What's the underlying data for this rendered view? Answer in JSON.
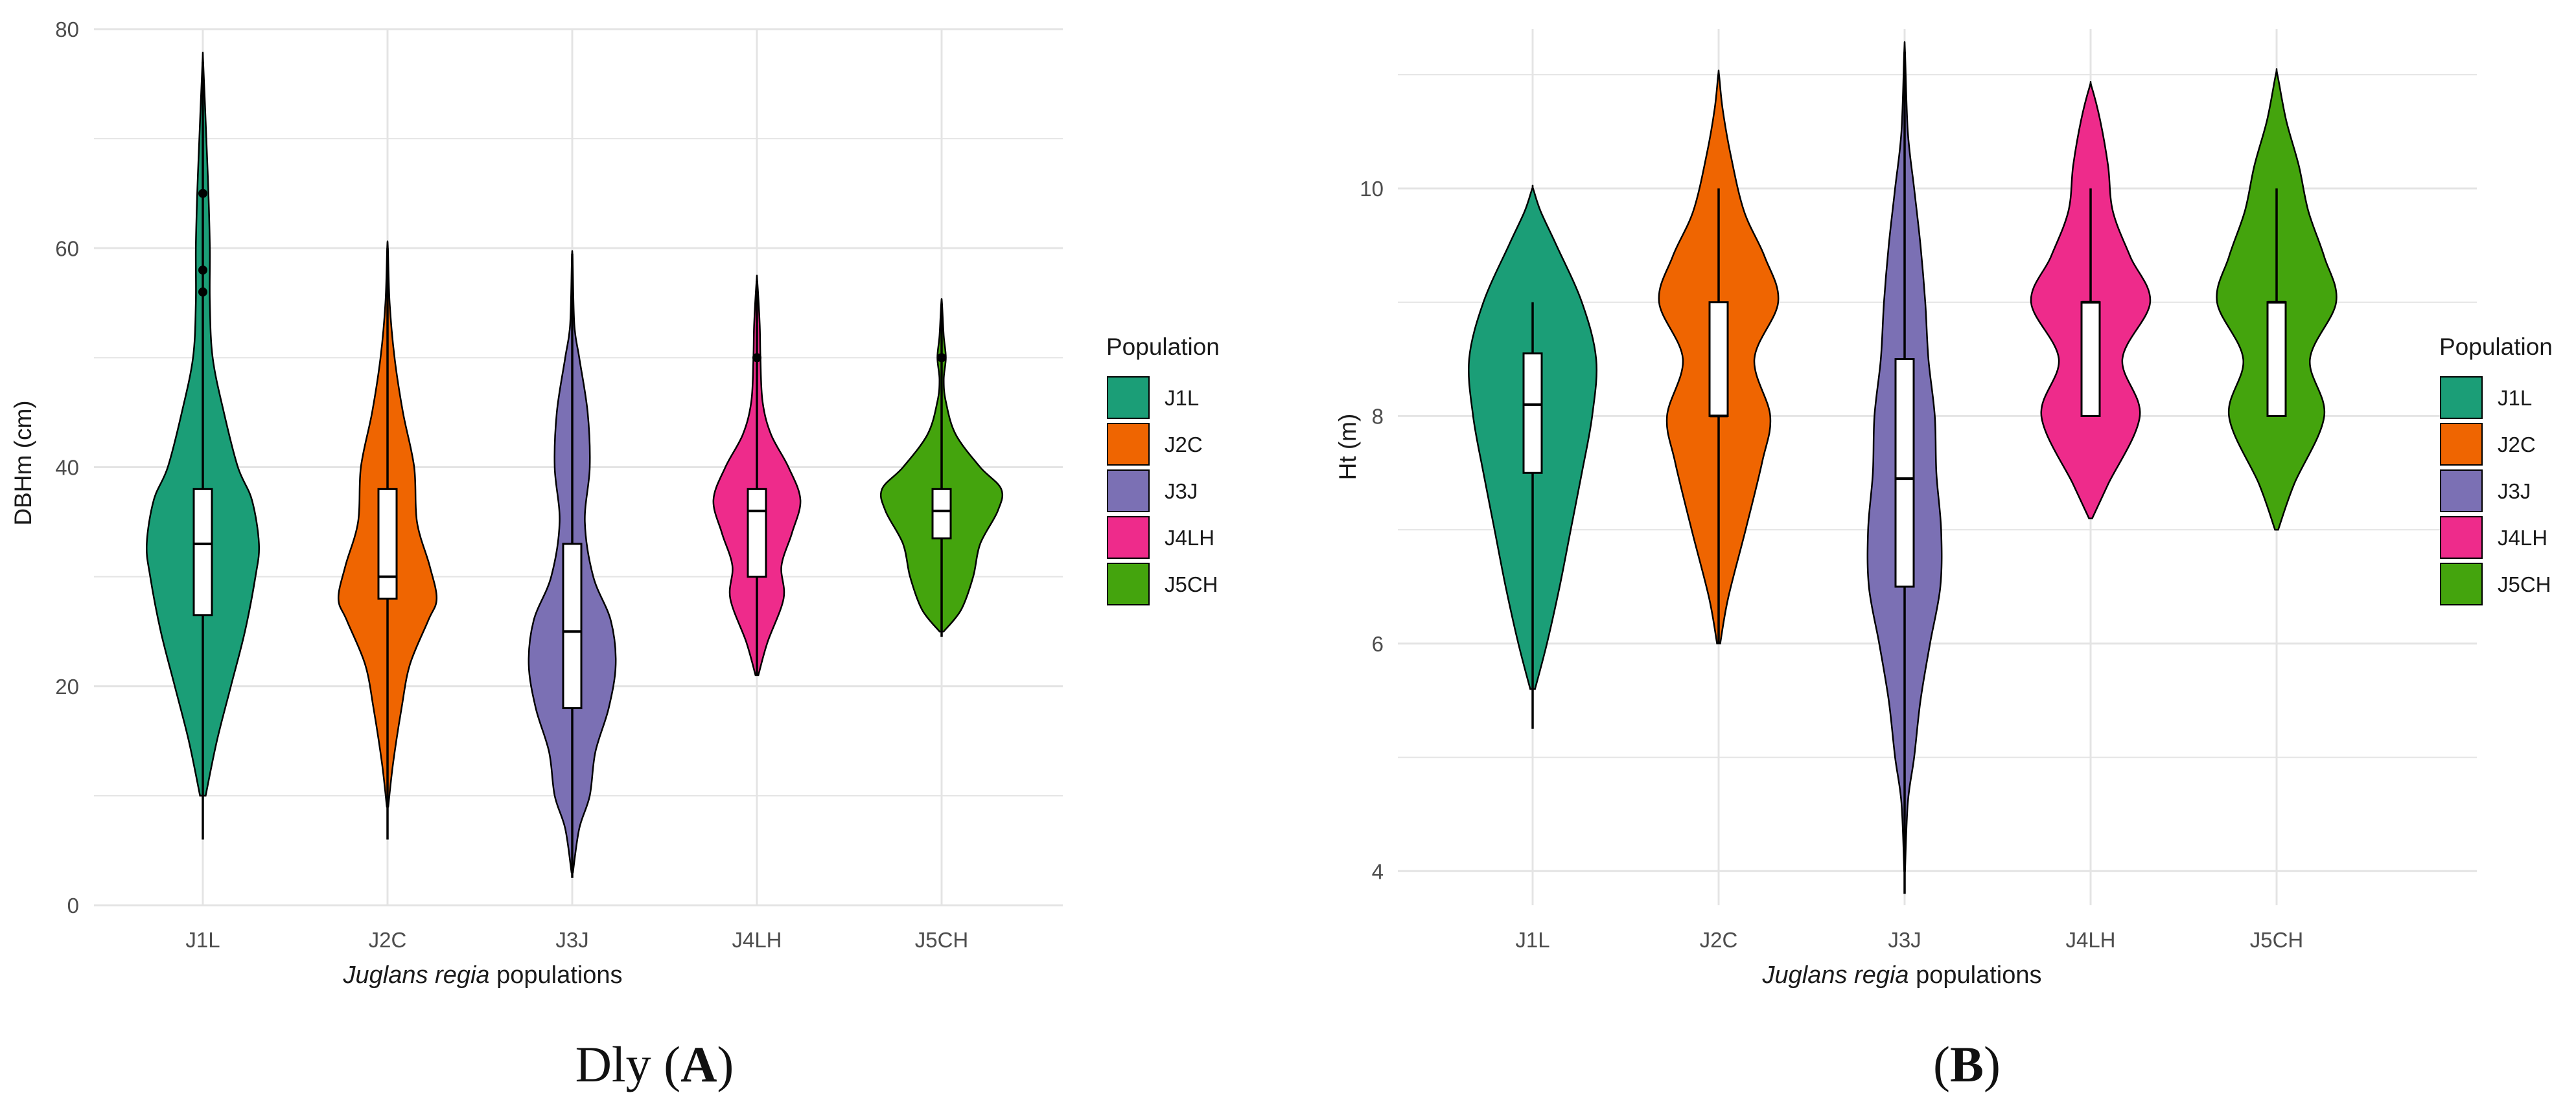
{
  "populations": [
    "J1L",
    "J2C",
    "J3J",
    "J4LH",
    "J5CH"
  ],
  "colors": {
    "J1L": "#1b9e77",
    "J2C": "#ef6501",
    "J3J": "#7b70b4",
    "J4LH": "#ee2b8b",
    "J5CH": "#44a40d",
    "grid": "#e4e4e4",
    "axis_text": "#4d4d4d"
  },
  "legend": {
    "title": "Population",
    "items": [
      "J1L",
      "J2C",
      "J3J",
      "J4LH",
      "J5CH"
    ]
  },
  "xlabel": {
    "italic": "Juglans regia",
    "rest": " populations"
  },
  "panels": [
    {
      "caption_prefix": "Dly (",
      "caption_letter": "A",
      "caption_suffix": ")",
      "ylabel": "DBHm (cm)"
    },
    {
      "caption_prefix": "(",
      "caption_letter": "B",
      "caption_suffix": ")",
      "ylabel": "Ht (m)"
    }
  ],
  "chart_data": [
    {
      "type": "violin",
      "ylabel": "DBHm (cm)",
      "ylim": [
        0,
        80
      ],
      "yticks": [
        0,
        20,
        40,
        60,
        80
      ],
      "grid": true,
      "legend_position": "right",
      "categories": [
        "J1L",
        "J2C",
        "J3J",
        "J4LH",
        "J5CH"
      ],
      "series": [
        {
          "name": "J1L",
          "min": 6,
          "q1": 26.5,
          "median": 33,
          "q3": 38,
          "max": 77,
          "outliers": [
            56,
            58,
            65
          ],
          "density": [
            [
              10,
              0.04
            ],
            [
              15,
              0.2
            ],
            [
              20,
              0.4
            ],
            [
              25,
              0.6
            ],
            [
              30,
              0.75
            ],
            [
              33,
              0.8
            ],
            [
              37,
              0.7
            ],
            [
              40,
              0.5
            ],
            [
              45,
              0.3
            ],
            [
              50,
              0.14
            ],
            [
              55,
              0.1
            ],
            [
              60,
              0.1
            ],
            [
              65,
              0.08
            ],
            [
              70,
              0.05
            ],
            [
              77,
              0.005
            ]
          ]
        },
        {
          "name": "J2C",
          "min": 6,
          "q1": 28,
          "median": 30,
          "q3": 38,
          "max": 60,
          "outliers": [],
          "density": [
            [
              9,
              0.01
            ],
            [
              13,
              0.08
            ],
            [
              18,
              0.2
            ],
            [
              22,
              0.32
            ],
            [
              26,
              0.58
            ],
            [
              28,
              0.7
            ],
            [
              31,
              0.6
            ],
            [
              35,
              0.42
            ],
            [
              40,
              0.38
            ],
            [
              45,
              0.22
            ],
            [
              50,
              0.1
            ],
            [
              55,
              0.03
            ],
            [
              60,
              0.005
            ]
          ]
        },
        {
          "name": "J3J",
          "min": 2.5,
          "q1": 18,
          "median": 25,
          "q3": 33,
          "max": 59.5,
          "outliers": [],
          "density": [
            [
              3,
              0.01
            ],
            [
              7,
              0.1
            ],
            [
              10,
              0.25
            ],
            [
              14,
              0.33
            ],
            [
              18,
              0.52
            ],
            [
              22,
              0.62
            ],
            [
              26,
              0.55
            ],
            [
              30,
              0.3
            ],
            [
              35,
              0.18
            ],
            [
              40,
              0.25
            ],
            [
              45,
              0.22
            ],
            [
              50,
              0.1
            ],
            [
              53,
              0.03
            ],
            [
              59,
              0.005
            ]
          ]
        },
        {
          "name": "J4LH",
          "min": 21,
          "q1": 30,
          "median": 36,
          "q3": 38,
          "max": 57,
          "outliers": [
            50
          ],
          "density": [
            [
              21,
              0.02
            ],
            [
              24,
              0.15
            ],
            [
              28,
              0.38
            ],
            [
              31,
              0.35
            ],
            [
              34,
              0.5
            ],
            [
              37,
              0.62
            ],
            [
              40,
              0.45
            ],
            [
              43,
              0.2
            ],
            [
              46,
              0.08
            ],
            [
              50,
              0.05
            ],
            [
              53,
              0.04
            ],
            [
              57,
              0.005
            ]
          ]
        },
        {
          "name": "J5CH",
          "min": 24.5,
          "q1": 33.5,
          "median": 36,
          "q3": 38,
          "max": 54.5,
          "outliers": [
            50
          ],
          "density": [
            [
              25,
              0.03
            ],
            [
              27,
              0.28
            ],
            [
              30,
              0.45
            ],
            [
              33,
              0.55
            ],
            [
              36,
              0.8
            ],
            [
              38,
              0.85
            ],
            [
              40,
              0.55
            ],
            [
              43,
              0.2
            ],
            [
              46,
              0.06
            ],
            [
              48,
              0.03
            ],
            [
              50,
              0.06
            ],
            [
              52,
              0.03
            ],
            [
              55,
              0.005
            ]
          ]
        }
      ]
    },
    {
      "type": "violin",
      "ylabel": "Ht (m)",
      "ylim": [
        3.7,
        11.4
      ],
      "yticks": [
        4,
        6,
        8,
        10
      ],
      "grid": true,
      "legend_position": "right",
      "categories": [
        "J1L",
        "J2C",
        "J3J",
        "J4LH",
        "J5CH"
      ],
      "series": [
        {
          "name": "J1L",
          "min": 5.25,
          "q1": 7.5,
          "median": 8.1,
          "q3": 8.55,
          "max": 9.0,
          "outliers": [],
          "density": [
            [
              5.6,
              0.03
            ],
            [
              6,
              0.18
            ],
            [
              6.5,
              0.34
            ],
            [
              7,
              0.48
            ],
            [
              7.5,
              0.62
            ],
            [
              8,
              0.75
            ],
            [
              8.5,
              0.8
            ],
            [
              9,
              0.62
            ],
            [
              9.5,
              0.3
            ],
            [
              9.8,
              0.1
            ],
            [
              10,
              0.005
            ]
          ]
        },
        {
          "name": "J2C",
          "min": 6.0,
          "q1": 8.0,
          "median": 8.0,
          "q3": 9.0,
          "max": 10.0,
          "outliers": [],
          "density": [
            [
              6,
              0.02
            ],
            [
              6.4,
              0.12
            ],
            [
              7,
              0.34
            ],
            [
              7.6,
              0.55
            ],
            [
              8,
              0.65
            ],
            [
              8.5,
              0.45
            ],
            [
              9,
              0.75
            ],
            [
              9.4,
              0.58
            ],
            [
              9.8,
              0.32
            ],
            [
              10.3,
              0.15
            ],
            [
              10.7,
              0.05
            ],
            [
              11,
              0.005
            ]
          ]
        },
        {
          "name": "J3J",
          "min": 3.8,
          "q1": 6.5,
          "median": 7.45,
          "q3": 8.5,
          "max": 11.2,
          "outliers": [],
          "density": [
            [
              4,
              0.005
            ],
            [
              4.6,
              0.04
            ],
            [
              5,
              0.12
            ],
            [
              5.5,
              0.2
            ],
            [
              6,
              0.32
            ],
            [
              6.5,
              0.45
            ],
            [
              7,
              0.46
            ],
            [
              7.5,
              0.4
            ],
            [
              8,
              0.38
            ],
            [
              8.5,
              0.3
            ],
            [
              9,
              0.26
            ],
            [
              9.5,
              0.2
            ],
            [
              10,
              0.12
            ],
            [
              10.5,
              0.04
            ],
            [
              11.2,
              0.005
            ]
          ]
        },
        {
          "name": "J4LH",
          "min": 8.0,
          "q1": 8.0,
          "median": 9.0,
          "q3": 9.0,
          "max": 10.0,
          "outliers": [],
          "density": [
            [
              7.1,
              0.02
            ],
            [
              7.4,
              0.22
            ],
            [
              8,
              0.62
            ],
            [
              8.5,
              0.4
            ],
            [
              9,
              0.75
            ],
            [
              9.4,
              0.5
            ],
            [
              9.8,
              0.28
            ],
            [
              10.2,
              0.22
            ],
            [
              10.6,
              0.12
            ],
            [
              10.9,
              0.01
            ]
          ]
        },
        {
          "name": "J5CH",
          "min": 8.0,
          "q1": 8.0,
          "median": 9.0,
          "q3": 9.0,
          "max": 10.0,
          "outliers": [],
          "density": [
            [
              7,
              0.02
            ],
            [
              7.4,
              0.22
            ],
            [
              8,
              0.6
            ],
            [
              8.5,
              0.42
            ],
            [
              9,
              0.75
            ],
            [
              9.4,
              0.6
            ],
            [
              9.8,
              0.4
            ],
            [
              10.2,
              0.28
            ],
            [
              10.6,
              0.12
            ],
            [
              11,
              0.01
            ]
          ]
        }
      ]
    }
  ]
}
